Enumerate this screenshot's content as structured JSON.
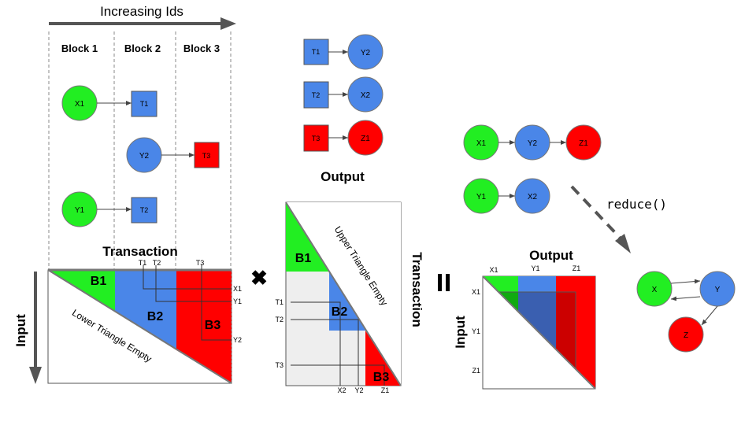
{
  "top_label": "Increasing Ids",
  "blocks": [
    "Block 1",
    "Block 2",
    "Block 3"
  ],
  "left_nodes": {
    "X1": "X1",
    "T1": "T1",
    "Y2": "Y2",
    "T3": "T3",
    "Y1": "Y1",
    "T2": "T2"
  },
  "mapping_nodes": {
    "row1": [
      "T1",
      "Y2"
    ],
    "row2": [
      "T2",
      "X2"
    ],
    "row3": [
      "T3",
      "Z1"
    ]
  },
  "output_label": "Output",
  "chains": {
    "chain1": [
      "X1",
      "Y2",
      "Z1"
    ],
    "chain2": [
      "Y1",
      "X2"
    ]
  },
  "reduce_label": "reduce()",
  "reduced_nodes": [
    "X",
    "Y",
    "Z"
  ],
  "matrix1": {
    "title": "Transaction",
    "side_label": "Input",
    "top_ticks": [
      "T1",
      "T2",
      "T3"
    ],
    "right_ticks": [
      "X1",
      "Y1",
      "Y2"
    ],
    "blocks": [
      "B1",
      "B2",
      "B3"
    ],
    "empty_label": "Lower Triangle Empty"
  },
  "operator_times": "✖",
  "matrix2": {
    "title": "Output",
    "side_label": "Transaction",
    "left_ticks": [
      "T1",
      "T2",
      "T3"
    ],
    "bottom_ticks": [
      "X2",
      "Y2",
      "Z1"
    ],
    "blocks": [
      "B1",
      "B2",
      "B3"
    ],
    "empty_label": "Upper Triangle Empty"
  },
  "operator_equals": "=",
  "matrix3": {
    "title": "Output",
    "side_label": "Input",
    "top_ticks": [
      "X1",
      "Y1",
      "Z1"
    ],
    "left_ticks": [
      "X1",
      "Y1",
      "Z1"
    ]
  },
  "colors": {
    "green": "#22ee22",
    "blue": "#4a86e8",
    "red": "#ff0000",
    "gray_fill": "#eeeeee",
    "arrow_gray": "#555555"
  }
}
